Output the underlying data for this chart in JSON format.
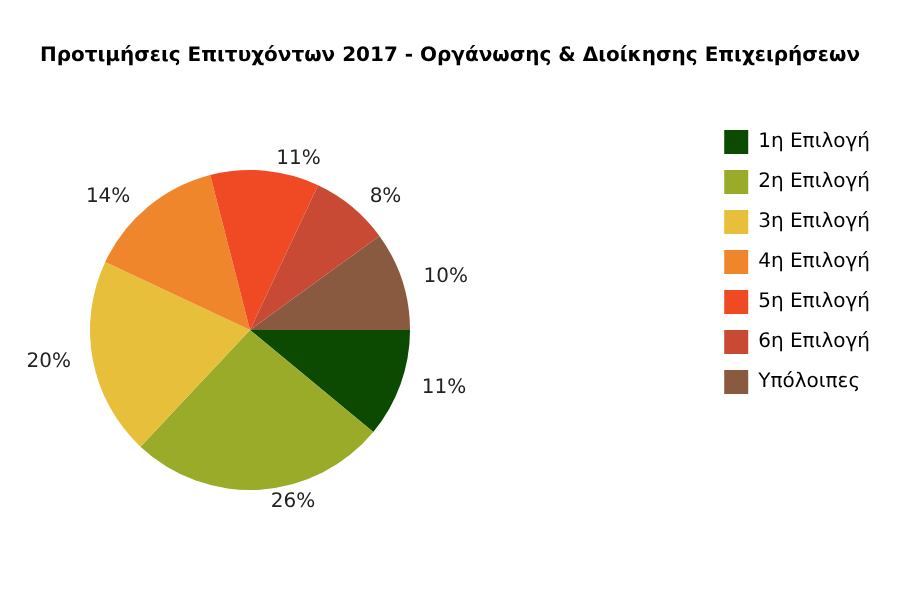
{
  "chart_data": {
    "type": "pie",
    "title": "Προτιμήσεις Επιτυχόντων 2017 - Οργάνωσης & Διοίκησης Επιχειρήσεων",
    "categories": [
      "1η Επιλογή",
      "2η Επιλογή",
      "3η Επιλογή",
      "4η Επιλογή",
      "5η Επιλογή",
      "6η Επιλογή",
      "Υπόλοιπες"
    ],
    "values": [
      11,
      26,
      20,
      14,
      11,
      8,
      10
    ],
    "value_labels": [
      "11%",
      "26%",
      "20%",
      "14%",
      "11%",
      "8%",
      "10%"
    ],
    "colors": [
      "#0b4a00",
      "#9aab2a",
      "#e8bf3a",
      "#f0862c",
      "#f04a24",
      "#c84a34",
      "#8a5a40"
    ],
    "legend": "right"
  }
}
